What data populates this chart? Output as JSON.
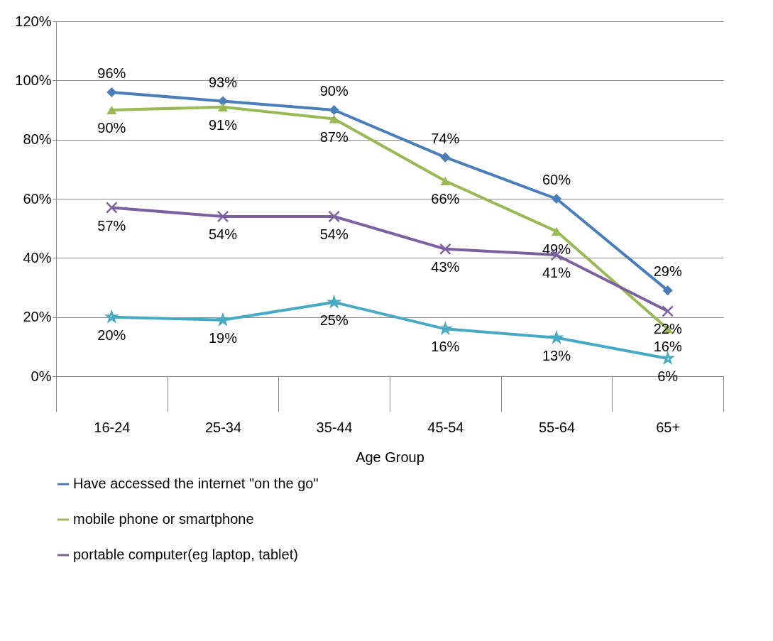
{
  "chart_data": {
    "type": "line",
    "xlabel": "Age Group",
    "categories": [
      "16-24",
      "25-34",
      "35-44",
      "45-54",
      "55-64",
      "65+"
    ],
    "series": [
      {
        "name": "Have accessed the internet \"on the go\"",
        "color": "#4a7ebb",
        "marker": "diamond",
        "values": [
          96,
          93,
          90,
          74,
          60,
          29
        ],
        "value_labels": [
          "96%",
          "93%",
          "90%",
          "74%",
          "60%",
          "29%"
        ]
      },
      {
        "name": "mobile phone or smartphone",
        "color": "#98b954",
        "marker": "triangle",
        "values": [
          90,
          91,
          87,
          66,
          49,
          16
        ],
        "value_labels": [
          "90%",
          "91%",
          "87%",
          "66%",
          "49%",
          "16%"
        ]
      },
      {
        "name": "portable computer(eg laptop, tablet)",
        "color": "#7d60a0",
        "marker": "cross",
        "values": [
          57,
          54,
          54,
          43,
          41,
          22
        ],
        "value_labels": [
          "57%",
          "54%",
          "54%",
          "43%",
          "41%",
          "22%"
        ]
      },
      {
        "color": "#46aac5",
        "marker": "star",
        "values": [
          20,
          19,
          25,
          16,
          13,
          6
        ],
        "value_labels": [
          "20%",
          "19%",
          "25%",
          "16%",
          "13%",
          "6%"
        ]
      }
    ],
    "ylim": [
      0,
      120
    ],
    "yticks": [
      {
        "value": 0,
        "label": "0%"
      },
      {
        "value": 20,
        "label": "20%"
      },
      {
        "value": 40,
        "label": "40%"
      },
      {
        "value": 60,
        "label": "60%"
      },
      {
        "value": 80,
        "label": "80%"
      },
      {
        "value": 100,
        "label": "100%"
      },
      {
        "value": 120,
        "label": "120%"
      }
    ],
    "grid": "y",
    "legend": "bottom"
  }
}
